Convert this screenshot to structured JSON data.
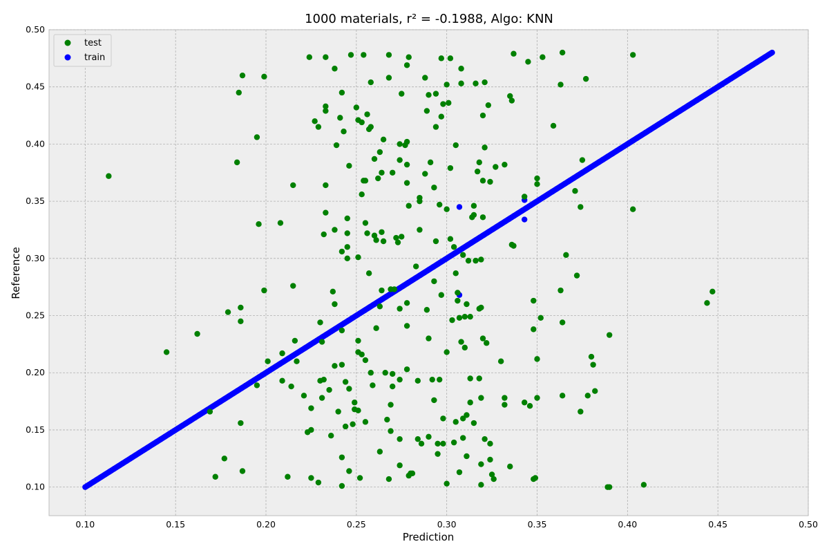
{
  "chart_data": {
    "type": "scatter",
    "title": "1000 materials, r² = -0.1988, Algo: KNN",
    "xlabel": "Prediction",
    "ylabel": "Reference",
    "xlim": [
      0.08,
      0.5
    ],
    "ylim": [
      0.075,
      0.5
    ],
    "xticks": [
      "0.10",
      "0.15",
      "0.20",
      "0.25",
      "0.30",
      "0.35",
      "0.40",
      "0.45",
      "0.50"
    ],
    "yticks": [
      "0.10",
      "0.15",
      "0.20",
      "0.25",
      "0.30",
      "0.35",
      "0.40",
      "0.45",
      "0.50"
    ],
    "grid": true,
    "legend": {
      "position": "top-left",
      "entries": [
        "test",
        "train"
      ]
    },
    "colors": {
      "test": "#008000",
      "train": "#0000ff",
      "background": "#eeeeee",
      "grid": "#b0b0b0"
    },
    "series": [
      {
        "name": "test",
        "points": [
          [
            0.113,
            0.372
          ],
          [
            0.145,
            0.218
          ],
          [
            0.162,
            0.234
          ],
          [
            0.169,
            0.166
          ],
          [
            0.172,
            0.109
          ],
          [
            0.177,
            0.125
          ],
          [
            0.179,
            0.253
          ],
          [
            0.184,
            0.384
          ],
          [
            0.185,
            0.445
          ],
          [
            0.186,
            0.257
          ],
          [
            0.186,
            0.245
          ],
          [
            0.186,
            0.156
          ],
          [
            0.187,
            0.114
          ],
          [
            0.187,
            0.46
          ],
          [
            0.195,
            0.406
          ],
          [
            0.195,
            0.189
          ],
          [
            0.196,
            0.33
          ],
          [
            0.199,
            0.459
          ],
          [
            0.199,
            0.272
          ],
          [
            0.201,
            0.21
          ],
          [
            0.208,
            0.331
          ],
          [
            0.209,
            0.217
          ],
          [
            0.209,
            0.193
          ],
          [
            0.212,
            0.109
          ],
          [
            0.214,
            0.188
          ],
          [
            0.215,
            0.364
          ],
          [
            0.215,
            0.276
          ],
          [
            0.216,
            0.228
          ],
          [
            0.217,
            0.21
          ],
          [
            0.221,
            0.18
          ],
          [
            0.223,
            0.148
          ],
          [
            0.224,
            0.476
          ],
          [
            0.225,
            0.169
          ],
          [
            0.225,
            0.15
          ],
          [
            0.225,
            0.108
          ],
          [
            0.227,
            0.42
          ],
          [
            0.229,
            0.415
          ],
          [
            0.229,
            0.104
          ],
          [
            0.23,
            0.193
          ],
          [
            0.23,
            0.244
          ],
          [
            0.231,
            0.227
          ],
          [
            0.231,
            0.178
          ],
          [
            0.232,
            0.321
          ],
          [
            0.232,
            0.194
          ],
          [
            0.233,
            0.429
          ],
          [
            0.233,
            0.433
          ],
          [
            0.233,
            0.476
          ],
          [
            0.233,
            0.364
          ],
          [
            0.233,
            0.34
          ],
          [
            0.235,
            0.185
          ],
          [
            0.236,
            0.145
          ],
          [
            0.237,
            0.271
          ],
          [
            0.238,
            0.26
          ],
          [
            0.238,
            0.325
          ],
          [
            0.238,
            0.466
          ],
          [
            0.238,
            0.206
          ],
          [
            0.239,
            0.399
          ],
          [
            0.24,
            0.166
          ],
          [
            0.241,
            0.423
          ],
          [
            0.242,
            0.445
          ],
          [
            0.242,
            0.306
          ],
          [
            0.242,
            0.207
          ],
          [
            0.242,
            0.237
          ],
          [
            0.242,
            0.126
          ],
          [
            0.242,
            0.101
          ],
          [
            0.243,
            0.411
          ],
          [
            0.244,
            0.153
          ],
          [
            0.244,
            0.192
          ],
          [
            0.245,
            0.3
          ],
          [
            0.245,
            0.31
          ],
          [
            0.245,
            0.322
          ],
          [
            0.245,
            0.335
          ],
          [
            0.246,
            0.381
          ],
          [
            0.246,
            0.186
          ],
          [
            0.246,
            0.114
          ],
          [
            0.247,
            0.478
          ],
          [
            0.248,
            0.155
          ],
          [
            0.249,
            0.174
          ],
          [
            0.249,
            0.168
          ],
          [
            0.25,
            0.432
          ],
          [
            0.251,
            0.421
          ],
          [
            0.251,
            0.301
          ],
          [
            0.251,
            0.228
          ],
          [
            0.251,
            0.218
          ],
          [
            0.251,
            0.167
          ],
          [
            0.252,
            0.108
          ],
          [
            0.253,
            0.419
          ],
          [
            0.253,
            0.216
          ],
          [
            0.253,
            0.356
          ],
          [
            0.254,
            0.368
          ],
          [
            0.254,
            0.478
          ],
          [
            0.255,
            0.368
          ],
          [
            0.255,
            0.331
          ],
          [
            0.255,
            0.211
          ],
          [
            0.255,
            0.157
          ],
          [
            0.256,
            0.426
          ],
          [
            0.256,
            0.322
          ],
          [
            0.257,
            0.287
          ],
          [
            0.257,
            0.413
          ],
          [
            0.258,
            0.454
          ],
          [
            0.258,
            0.415
          ],
          [
            0.258,
            0.2
          ],
          [
            0.259,
            0.189
          ],
          [
            0.26,
            0.387
          ],
          [
            0.26,
            0.32
          ],
          [
            0.261,
            0.316
          ],
          [
            0.261,
            0.239
          ],
          [
            0.262,
            0.37
          ],
          [
            0.263,
            0.258
          ],
          [
            0.263,
            0.131
          ],
          [
            0.263,
            0.393
          ],
          [
            0.264,
            0.375
          ],
          [
            0.264,
            0.272
          ],
          [
            0.264,
            0.323
          ],
          [
            0.265,
            0.404
          ],
          [
            0.265,
            0.315
          ],
          [
            0.266,
            0.2
          ],
          [
            0.267,
            0.159
          ],
          [
            0.268,
            0.478
          ],
          [
            0.268,
            0.458
          ],
          [
            0.268,
            0.107
          ],
          [
            0.269,
            0.273
          ],
          [
            0.269,
            0.172
          ],
          [
            0.269,
            0.149
          ],
          [
            0.27,
            0.375
          ],
          [
            0.27,
            0.199
          ],
          [
            0.27,
            0.188
          ],
          [
            0.271,
            0.273
          ],
          [
            0.272,
            0.318
          ],
          [
            0.273,
            0.314
          ],
          [
            0.274,
            0.4
          ],
          [
            0.274,
            0.386
          ],
          [
            0.274,
            0.256
          ],
          [
            0.274,
            0.194
          ],
          [
            0.274,
            0.142
          ],
          [
            0.274,
            0.119
          ],
          [
            0.275,
            0.444
          ],
          [
            0.275,
            0.319
          ],
          [
            0.277,
            0.399
          ],
          [
            0.278,
            0.402
          ],
          [
            0.278,
            0.382
          ],
          [
            0.278,
            0.366
          ],
          [
            0.278,
            0.261
          ],
          [
            0.278,
            0.241
          ],
          [
            0.278,
            0.203
          ],
          [
            0.278,
            0.469
          ],
          [
            0.279,
            0.476
          ],
          [
            0.279,
            0.346
          ],
          [
            0.279,
            0.11
          ],
          [
            0.28,
            0.112
          ],
          [
            0.281,
            0.112
          ],
          [
            0.283,
            0.293
          ],
          [
            0.284,
            0.193
          ],
          [
            0.284,
            0.142
          ],
          [
            0.285,
            0.35
          ],
          [
            0.285,
            0.353
          ],
          [
            0.285,
            0.325
          ],
          [
            0.286,
            0.138
          ],
          [
            0.288,
            0.458
          ],
          [
            0.288,
            0.374
          ],
          [
            0.289,
            0.429
          ],
          [
            0.289,
            0.255
          ],
          [
            0.29,
            0.23
          ],
          [
            0.29,
            0.144
          ],
          [
            0.29,
            0.443
          ],
          [
            0.291,
            0.384
          ],
          [
            0.292,
            0.194
          ],
          [
            0.293,
            0.362
          ],
          [
            0.293,
            0.28
          ],
          [
            0.293,
            0.176
          ],
          [
            0.294,
            0.444
          ],
          [
            0.294,
            0.415
          ],
          [
            0.294,
            0.315
          ],
          [
            0.295,
            0.138
          ],
          [
            0.295,
            0.129
          ],
          [
            0.296,
            0.194
          ],
          [
            0.296,
            0.347
          ],
          [
            0.297,
            0.268
          ],
          [
            0.297,
            0.424
          ],
          [
            0.297,
            0.475
          ],
          [
            0.298,
            0.435
          ],
          [
            0.298,
            0.16
          ],
          [
            0.298,
            0.138
          ],
          [
            0.3,
            0.103
          ],
          [
            0.3,
            0.343
          ],
          [
            0.3,
            0.218
          ],
          [
            0.3,
            0.452
          ],
          [
            0.301,
            0.436
          ],
          [
            0.302,
            0.317
          ],
          [
            0.302,
            0.379
          ],
          [
            0.302,
            0.475
          ],
          [
            0.303,
            0.246
          ],
          [
            0.304,
            0.31
          ],
          [
            0.304,
            0.139
          ],
          [
            0.305,
            0.287
          ],
          [
            0.305,
            0.157
          ],
          [
            0.305,
            0.399
          ],
          [
            0.306,
            0.263
          ],
          [
            0.306,
            0.27
          ],
          [
            0.307,
            0.248
          ],
          [
            0.307,
            0.113
          ],
          [
            0.308,
            0.466
          ],
          [
            0.308,
            0.453
          ],
          [
            0.308,
            0.227
          ],
          [
            0.309,
            0.303
          ],
          [
            0.309,
            0.16
          ],
          [
            0.309,
            0.143
          ],
          [
            0.31,
            0.249
          ],
          [
            0.31,
            0.222
          ],
          [
            0.311,
            0.163
          ],
          [
            0.311,
            0.127
          ],
          [
            0.311,
            0.26
          ],
          [
            0.312,
            0.298
          ],
          [
            0.313,
            0.195
          ],
          [
            0.313,
            0.174
          ],
          [
            0.313,
            0.249
          ],
          [
            0.314,
            0.336
          ],
          [
            0.315,
            0.338
          ],
          [
            0.315,
            0.346
          ],
          [
            0.315,
            0.156
          ],
          [
            0.316,
            0.453
          ],
          [
            0.316,
            0.298
          ],
          [
            0.317,
            0.376
          ],
          [
            0.318,
            0.195
          ],
          [
            0.318,
            0.384
          ],
          [
            0.318,
            0.256
          ],
          [
            0.319,
            0.12
          ],
          [
            0.319,
            0.102
          ],
          [
            0.319,
            0.299
          ],
          [
            0.319,
            0.257
          ],
          [
            0.319,
            0.178
          ],
          [
            0.32,
            0.425
          ],
          [
            0.32,
            0.368
          ],
          [
            0.32,
            0.336
          ],
          [
            0.32,
            0.23
          ],
          [
            0.321,
            0.454
          ],
          [
            0.321,
            0.397
          ],
          [
            0.321,
            0.142
          ],
          [
            0.322,
            0.226
          ],
          [
            0.323,
            0.434
          ],
          [
            0.324,
            0.367
          ],
          [
            0.324,
            0.138
          ],
          [
            0.324,
            0.124
          ],
          [
            0.325,
            0.111
          ],
          [
            0.326,
            0.107
          ],
          [
            0.327,
            0.38
          ],
          [
            0.33,
            0.21
          ],
          [
            0.332,
            0.382
          ],
          [
            0.332,
            0.172
          ],
          [
            0.332,
            0.178
          ],
          [
            0.335,
            0.442
          ],
          [
            0.335,
            0.118
          ],
          [
            0.336,
            0.438
          ],
          [
            0.336,
            0.312
          ],
          [
            0.337,
            0.311
          ],
          [
            0.337,
            0.479
          ],
          [
            0.343,
            0.354
          ],
          [
            0.343,
            0.174
          ],
          [
            0.345,
            0.472
          ],
          [
            0.346,
            0.171
          ],
          [
            0.348,
            0.107
          ],
          [
            0.348,
            0.238
          ],
          [
            0.348,
            0.263
          ],
          [
            0.349,
            0.108
          ],
          [
            0.35,
            0.37
          ],
          [
            0.35,
            0.365
          ],
          [
            0.35,
            0.212
          ],
          [
            0.35,
            0.178
          ],
          [
            0.352,
            0.248
          ],
          [
            0.353,
            0.476
          ],
          [
            0.359,
            0.416
          ],
          [
            0.363,
            0.452
          ],
          [
            0.363,
            0.272
          ],
          [
            0.364,
            0.48
          ],
          [
            0.364,
            0.244
          ],
          [
            0.364,
            0.18
          ],
          [
            0.366,
            0.303
          ],
          [
            0.371,
            0.359
          ],
          [
            0.372,
            0.285
          ],
          [
            0.374,
            0.166
          ],
          [
            0.375,
            0.386
          ],
          [
            0.374,
            0.345
          ],
          [
            0.377,
            0.457
          ],
          [
            0.378,
            0.18
          ],
          [
            0.38,
            0.214
          ],
          [
            0.381,
            0.207
          ],
          [
            0.382,
            0.184
          ],
          [
            0.389,
            0.1
          ],
          [
            0.39,
            0.1
          ],
          [
            0.39,
            0.233
          ],
          [
            0.403,
            0.478
          ],
          [
            0.403,
            0.343
          ],
          [
            0.409,
            0.102
          ],
          [
            0.444,
            0.261
          ],
          [
            0.447,
            0.271
          ]
        ]
      },
      {
        "name": "train",
        "points": [
          [
            0.307,
            0.345
          ],
          [
            0.307,
            0.268
          ],
          [
            0.343,
            0.351
          ],
          [
            0.343,
            0.334
          ]
        ]
      }
    ],
    "train_line": {
      "x_start": 0.1,
      "x_end": 0.48,
      "count": 520,
      "jitter": 0.0
    }
  }
}
